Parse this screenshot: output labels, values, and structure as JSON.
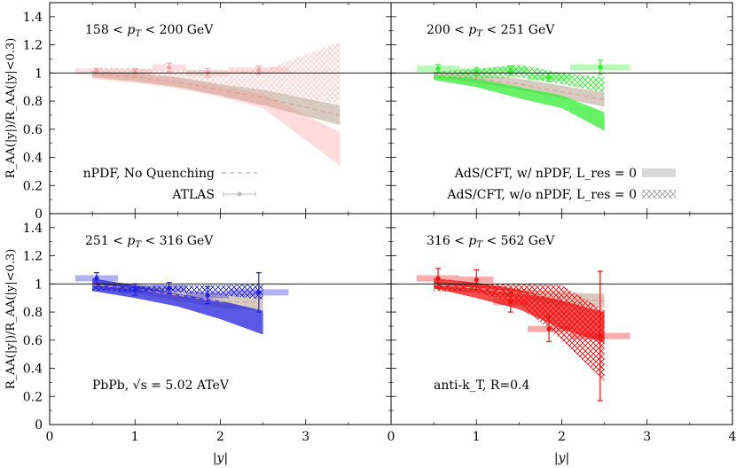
{
  "chart_data": {
    "type": "area",
    "shared": {
      "xlabel": "|y|",
      "ylabel": "R_AA(|y|)/R_AA(|y|<0.3)",
      "ylim": [
        0,
        1.5
      ],
      "yticks": [
        0,
        0.2,
        0.4,
        0.6,
        0.8,
        1,
        1.2,
        1.4
      ],
      "ytick_labels": [
        "0",
        "0.2",
        "0.4",
        "0.6",
        "0.8",
        "1",
        "1.2",
        "1.4"
      ],
      "xlim": [
        0,
        4
      ],
      "xticks_left": [
        0,
        1,
        2,
        3
      ],
      "xticks_right": [
        0,
        1,
        2,
        3,
        4
      ],
      "reference_line": 1,
      "grid": false
    },
    "legend": {
      "npdf": "nPDF, No Quenching",
      "atlas": "ATLAS",
      "ads_npdf": "AdS/CFT, w/ nPDF, L_res = 0",
      "ads_nonpdf": "AdS/CFT, w/o nPDF, L_res = 0"
    },
    "notes": {
      "system": "PbPb, √s = 5.02 ATeV",
      "jet": "anti-k_T, R=0.4"
    },
    "panels": [
      {
        "label": "158 < p_T < 200 GeV",
        "color": "#ff9999",
        "x": [
          0.5,
          1.0,
          1.5,
          2.0,
          2.5,
          3.4
        ],
        "npdf_band": {
          "low": [
            0.97,
            0.94,
            0.9,
            0.84,
            0.77,
            0.63
          ],
          "high": [
            1.01,
            1.0,
            0.97,
            0.92,
            0.88,
            0.77
          ]
        },
        "npdf_line": [
          0.99,
          0.97,
          0.935,
          0.88,
          0.825,
          0.7
        ],
        "ads_npdf_band": {
          "low": [
            0.96,
            0.93,
            0.89,
            0.83,
            0.75,
            0.34
          ],
          "high": [
            0.99,
            0.99,
            0.95,
            0.91,
            0.85,
            0.58
          ]
        },
        "ads_nonpdf_band": {
          "low": [
            0.99,
            0.98,
            0.95,
            0.92,
            0.87,
            0.78
          ],
          "high": [
            1.04,
            1.03,
            1.02,
            1.02,
            1.02,
            1.22
          ]
        },
        "atlas": {
          "x": [
            0.55,
            1.0,
            1.4,
            1.85,
            2.45
          ],
          "y": [
            1.01,
            1.01,
            1.04,
            1.0,
            1.02
          ],
          "xerr": [
            0.25,
            0.2,
            0.2,
            0.25,
            0.35
          ],
          "yerr": [
            0.02,
            0.02,
            0.03,
            0.03,
            0.03
          ]
        }
      },
      {
        "label": "200 < p_T < 251 GeV",
        "color": "#33ee33",
        "x": [
          0.5,
          1.0,
          1.5,
          2.0,
          2.5
        ],
        "npdf_band": {
          "low": [
            0.97,
            0.93,
            0.88,
            0.82,
            0.76
          ],
          "high": [
            1.01,
            0.99,
            0.96,
            0.91,
            0.86
          ]
        },
        "npdf_line": [
          0.99,
          0.96,
          0.92,
          0.865,
          0.81
        ],
        "ads_npdf_band": {
          "low": [
            0.95,
            0.9,
            0.82,
            0.75,
            0.59
          ],
          "high": [
            0.98,
            0.96,
            0.9,
            0.84,
            0.72
          ]
        },
        "ads_nonpdf_band": {
          "low": [
            0.96,
            0.96,
            0.97,
            0.92,
            0.86
          ],
          "high": [
            1.01,
            1.03,
            1.06,
            1.0,
            0.97
          ]
        },
        "atlas": {
          "x": [
            0.55,
            1.0,
            1.4,
            1.85,
            2.45
          ],
          "y": [
            1.03,
            1.01,
            1.02,
            0.97,
            1.04
          ],
          "xerr": [
            0.25,
            0.2,
            0.2,
            0.25,
            0.35
          ],
          "yerr": [
            0.03,
            0.03,
            0.03,
            0.03,
            0.05
          ]
        }
      },
      {
        "label": "251 < p_T < 316 GeV",
        "color": "#2222dd",
        "x": [
          0.5,
          1.0,
          1.5,
          2.0,
          2.5
        ],
        "npdf_band": {
          "low": [
            0.97,
            0.93,
            0.88,
            0.83,
            0.81
          ],
          "high": [
            1.02,
            1.0,
            0.96,
            0.92,
            0.93
          ]
        },
        "npdf_line": [
          0.995,
          0.965,
          0.92,
          0.875,
          0.87
        ],
        "ads_npdf_band": {
          "low": [
            0.95,
            0.9,
            0.84,
            0.75,
            0.64
          ],
          "high": [
            1.04,
            0.99,
            0.93,
            0.88,
            0.81
          ]
        },
        "ads_nonpdf_band": {
          "low": [
            0.95,
            0.95,
            0.94,
            0.92,
            0.89
          ],
          "high": [
            1.0,
            0.99,
            0.99,
            0.99,
            1.0
          ]
        },
        "atlas": {
          "x": [
            0.55,
            1.0,
            1.4,
            1.85,
            2.45
          ],
          "y": [
            1.04,
            0.96,
            0.97,
            0.92,
            0.94
          ],
          "xerr": [
            0.25,
            0.2,
            0.2,
            0.25,
            0.35
          ],
          "yerr": [
            0.04,
            0.04,
            0.04,
            0.06,
            0.14
          ]
        }
      },
      {
        "label": "316 < p_T < 562 GeV",
        "color": "#ee1111",
        "x": [
          0.5,
          1.0,
          1.5,
          2.0,
          2.5
        ],
        "npdf_band": {
          "low": [
            0.97,
            0.94,
            0.9,
            0.85,
            0.83
          ],
          "high": [
            1.02,
            1.0,
            0.97,
            0.94,
            0.93
          ]
        },
        "npdf_line": [
          0.995,
          0.97,
          0.935,
          0.895,
          0.88
        ],
        "ads_npdf_band": {
          "low": [
            0.97,
            0.9,
            0.82,
            0.68,
            0.58
          ],
          "high": [
            1.04,
            1.01,
            0.96,
            0.88,
            0.8
          ]
        },
        "ads_nonpdf_band": {
          "low": [
            0.95,
            0.94,
            0.86,
            0.6,
            0.31
          ],
          "high": [
            1.0,
            1.0,
            1.0,
            0.99,
            0.81
          ]
        },
        "atlas": {
          "x": [
            0.55,
            1.0,
            1.4,
            1.85,
            2.45
          ],
          "y": [
            1.04,
            1.03,
            0.87,
            0.68,
            0.63
          ],
          "xerr": [
            0.25,
            0.2,
            0.2,
            0.25,
            0.35
          ],
          "yerr": [
            0.07,
            0.07,
            0.07,
            0.09,
            0.46
          ]
        }
      }
    ]
  }
}
